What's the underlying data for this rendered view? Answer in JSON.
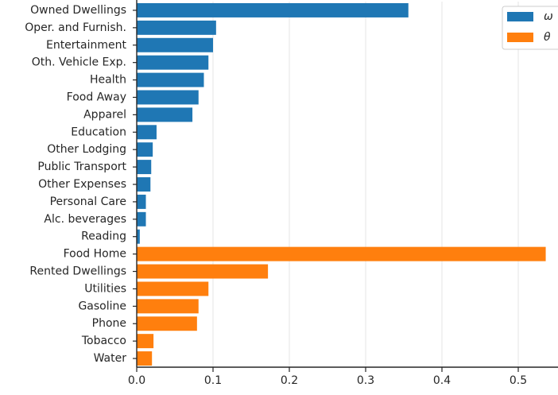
{
  "chart_data": {
    "type": "bar",
    "orientation": "horizontal",
    "title": "",
    "xlabel": "",
    "ylabel": "",
    "xlim": [
      0,
      0.55
    ],
    "xticks": [
      0.0,
      0.1,
      0.2,
      0.3,
      0.4,
      0.5
    ],
    "xtick_labels": [
      "0.0",
      "0.1",
      "0.2",
      "0.3",
      "0.4",
      "0.5"
    ],
    "grid": "vertical",
    "legend_position": "top-right",
    "series": [
      {
        "name": "ω",
        "color": "#1f77b4",
        "categories": [
          "Owned Dwellings",
          "Oper. and Furnish.",
          "Entertainment",
          "Oth. Vehicle Exp.",
          "Health",
          "Food Away",
          "Apparel",
          "Education",
          "Other Lodging",
          "Public Transport",
          "Other Expenses",
          "Personal Care",
          "Alc. beverages",
          "Reading"
        ],
        "values": [
          0.356,
          0.104,
          0.1,
          0.094,
          0.088,
          0.081,
          0.073,
          0.026,
          0.021,
          0.019,
          0.018,
          0.012,
          0.012,
          0.004
        ]
      },
      {
        "name": "θ",
        "color": "#ff7f0e",
        "categories": [
          "Food Home",
          "Rented Dwellings",
          "Utilities",
          "Gasoline",
          "Phone",
          "Tobacco",
          "Water"
        ],
        "values": [
          0.536,
          0.172,
          0.094,
          0.081,
          0.079,
          0.022,
          0.02
        ]
      }
    ]
  }
}
